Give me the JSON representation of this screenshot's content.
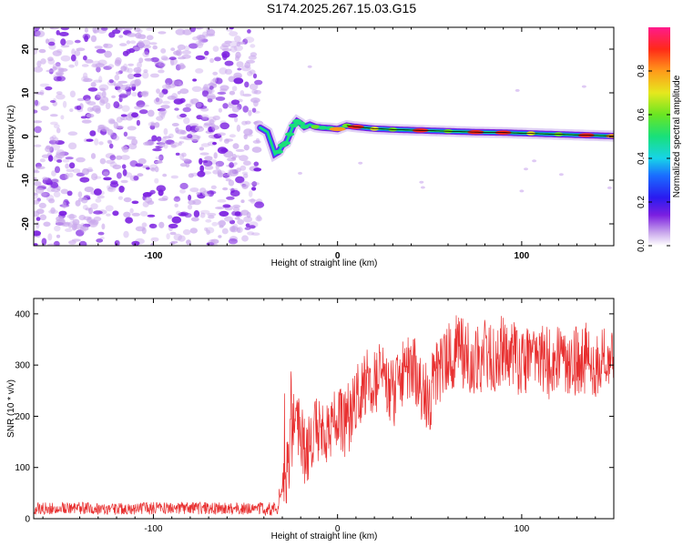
{
  "title": "S174.2025.267.15.03.G15",
  "colors": {
    "spectrogram_low": "#c9a7ec",
    "spectrogram_mid": "#7b1fe0",
    "snr_line": "#e83030",
    "axis": "#000000"
  },
  "chart_data": [
    {
      "type": "heatmap",
      "title": "S174.2025.267.15.03.G15",
      "xlabel": "Height of straight line (km)",
      "ylabel": "Frequency (Hz)",
      "xlim": [
        -165,
        150
      ],
      "ylim": [
        -25,
        25
      ],
      "x_ticks": [
        -100,
        0,
        100
      ],
      "y_ticks": [
        -20,
        -10,
        0,
        10,
        20
      ],
      "x_tick_labels": [
        "-100",
        "0",
        "100"
      ],
      "y_tick_labels": [
        "-20",
        "-10",
        "0",
        "10",
        "20"
      ],
      "colorbar": {
        "label": "Normalized spectral amplitude",
        "range": [
          0,
          1
        ],
        "ticks": [
          0.0,
          0.2,
          0.4,
          0.6,
          0.8
        ],
        "tick_labels": [
          "0.0",
          "0.2",
          "0.4",
          "0.6",
          "0.8"
        ]
      },
      "noise_region_x": [
        -165,
        -42
      ],
      "signal_track": {
        "x": [
          -42,
          -38,
          -34,
          -32,
          -30,
          -28,
          -26,
          -24,
          -22,
          -20,
          -18,
          -15,
          -12,
          -8,
          -4,
          0,
          5,
          10,
          20,
          30,
          45,
          60,
          75,
          90,
          105,
          120,
          135,
          150
        ],
        "frequency": [
          2,
          1,
          -4,
          -3.5,
          -2,
          -1.5,
          0.5,
          2.5,
          3.5,
          3,
          2.2,
          2.7,
          2.2,
          2.0,
          1.9,
          1.7,
          2.5,
          2.2,
          1.8,
          1.6,
          1.4,
          1.2,
          1.0,
          0.9,
          0.7,
          0.5,
          0.3,
          0.1
        ],
        "amplitude": [
          0.25,
          0.3,
          0.45,
          0.5,
          0.55,
          0.55,
          0.5,
          0.5,
          0.5,
          0.5,
          0.55,
          0.45,
          0.6,
          0.55,
          0.5,
          0.85,
          0.65,
          0.95,
          0.7,
          0.6,
          0.9,
          0.6,
          0.95,
          0.95,
          0.7,
          0.6,
          0.9,
          0.85
        ]
      }
    },
    {
      "type": "line",
      "xlabel": "Height of straight line (km)",
      "ylabel": "SNR (10 * v/v)",
      "xlim": [
        -165,
        150
      ],
      "ylim": [
        0,
        430
      ],
      "x_ticks": [
        -100,
        0,
        100
      ],
      "y_ticks": [
        0,
        100,
        200,
        300,
        400
      ],
      "x_tick_labels": [
        "-100",
        "0",
        "100"
      ],
      "y_tick_labels": [
        "0",
        "100",
        "200",
        "300",
        "400"
      ],
      "series": [
        {
          "x": [
            -165,
            -150,
            -135,
            -120,
            -105,
            -90,
            -75,
            -60,
            -45,
            -35,
            -30,
            -27,
            -25,
            -23,
            -20,
            -15,
            -10,
            -5,
            0,
            5,
            10,
            15,
            20,
            25,
            30,
            35,
            40,
            45,
            50,
            55,
            60,
            65,
            70,
            75,
            80,
            85,
            90,
            95,
            100,
            105,
            110,
            115,
            120,
            125,
            130,
            135,
            140,
            145,
            150
          ],
          "values": [
            20,
            21,
            20,
            19,
            20,
            21,
            20,
            20,
            20,
            20,
            45,
            120,
            200,
            170,
            150,
            140,
            175,
            180,
            185,
            190,
            230,
            260,
            280,
            270,
            240,
            280,
            300,
            260,
            240,
            290,
            310,
            330,
            320,
            310,
            320,
            315,
            330,
            320,
            300,
            310,
            320,
            300,
            320,
            310,
            305,
            315,
            300,
            310,
            300
          ],
          "noise_amplitude": [
            12,
            12,
            12,
            12,
            12,
            12,
            12,
            12,
            12,
            14,
            35,
            90,
            110,
            80,
            80,
            80,
            70,
            70,
            70,
            70,
            70,
            70,
            70,
            70,
            70,
            70,
            70,
            70,
            70,
            70,
            70,
            70,
            70,
            70,
            70,
            70,
            70,
            70,
            70,
            70,
            70,
            70,
            70,
            70,
            70,
            70,
            70,
            70,
            70
          ]
        }
      ]
    }
  ]
}
